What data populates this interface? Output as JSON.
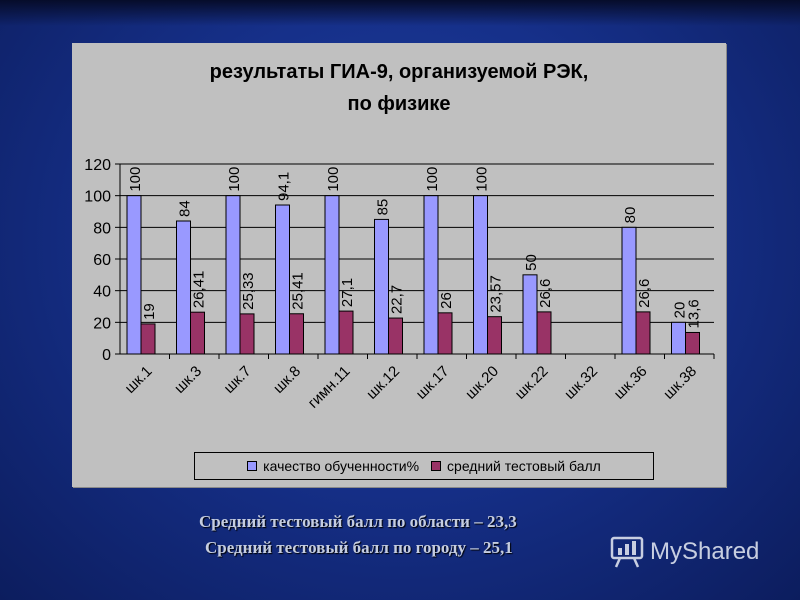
{
  "chart_data": {
    "type": "bar",
    "title_lines": [
      "результаты ГИА-9, организуемой РЭК,",
      "по физике"
    ],
    "xlabel": "",
    "ylabel": "",
    "ylim": [
      0,
      120
    ],
    "yticks": [
      0,
      20,
      40,
      60,
      80,
      100,
      120
    ],
    "grid": true,
    "legend_position": "bottom",
    "categories": [
      "шк.1",
      "шк.3",
      "шк.7",
      "шк.8",
      "гимн.11",
      "шк.12",
      "шк.17",
      "шк.20",
      "шк.22",
      "шк.32",
      "шк.36",
      "шк.38"
    ],
    "series": [
      {
        "name": "качество обученности%",
        "color": "#9999ff",
        "values": [
          100,
          84,
          100,
          94.1,
          100,
          85,
          100,
          100,
          50,
          null,
          80,
          20
        ],
        "labels": [
          "100",
          "84",
          "100",
          "94,1",
          "100",
          "85",
          "100",
          "100",
          "50",
          "",
          "80",
          "20"
        ]
      },
      {
        "name": "средний тестовый балл",
        "color": "#993366",
        "values": [
          19,
          26.41,
          25.33,
          25.41,
          27.1,
          22.7,
          26,
          23.57,
          26.6,
          null,
          26.6,
          13.6
        ],
        "labels": [
          "19",
          "26,41",
          "25,33",
          "25,41",
          "27,1",
          "22,7",
          "26",
          "23,57",
          "26,6",
          "",
          "26,6",
          "13,6"
        ]
      }
    ]
  },
  "footer": {
    "region_avg": "Средний тестовый балл по области – 23,3",
    "city_avg": "Средний тестовый балл по городу – 25,1"
  },
  "watermark": {
    "text": "MyShared",
    "icon": "presentation-board-icon"
  }
}
